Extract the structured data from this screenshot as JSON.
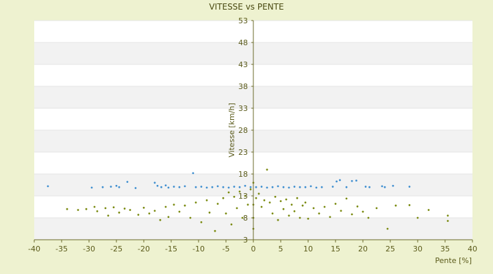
{
  "chart_data": {
    "type": "scatter",
    "title": "VITESSE vs PENTE",
    "xlabel": "Pente [%]",
    "ylabel": "Vitesse [km/h]",
    "xlim": [
      -40,
      40
    ],
    "ylim": [
      3,
      53
    ],
    "x_ticks": [
      -40,
      -35,
      -30,
      -25,
      -20,
      -15,
      -10,
      -5,
      0,
      5,
      10,
      15,
      20,
      25,
      30,
      35,
      40
    ],
    "y_ticks": [
      3,
      8,
      13,
      18,
      23,
      28,
      33,
      38,
      43,
      48,
      53
    ],
    "grid": "horizontal alternating bands",
    "legend": "none",
    "series": [
      {
        "color": "#3f8fd0",
        "marker": "circle",
        "approx_cluster": "≈ 15 km/h across slopes -38 to 30 %",
        "points": [
          [
            -37.5,
            15.2
          ],
          [
            -29.5,
            14.9
          ],
          [
            -27.5,
            15.0
          ],
          [
            -26.0,
            15.1
          ],
          [
            -25.0,
            15.3
          ],
          [
            -24.5,
            15.0
          ],
          [
            -23.0,
            16.2
          ],
          [
            -21.5,
            14.8
          ],
          [
            -18.0,
            16.0
          ],
          [
            -17.5,
            15.3
          ],
          [
            -16.8,
            15.0
          ],
          [
            -16.0,
            15.4
          ],
          [
            -15.5,
            14.9
          ],
          [
            -14.5,
            15.1
          ],
          [
            -13.5,
            15.0
          ],
          [
            -12.5,
            15.2
          ],
          [
            -11.0,
            18.2
          ],
          [
            -10.5,
            15.0
          ],
          [
            -9.5,
            15.1
          ],
          [
            -8.5,
            14.9
          ],
          [
            -7.5,
            15.0
          ],
          [
            -6.5,
            15.2
          ],
          [
            -5.5,
            15.0
          ],
          [
            -4.5,
            14.9
          ],
          [
            -3.5,
            15.1
          ],
          [
            -2.5,
            15.0
          ],
          [
            -1.5,
            15.3
          ],
          [
            -0.5,
            15.0
          ],
          [
            0.5,
            15.0
          ],
          [
            1.5,
            15.1
          ],
          [
            2.5,
            14.9
          ],
          [
            3.5,
            15.0
          ],
          [
            4.5,
            15.2
          ],
          [
            5.5,
            15.0
          ],
          [
            6.5,
            14.9
          ],
          [
            7.5,
            15.1
          ],
          [
            8.5,
            15.0
          ],
          [
            9.5,
            15.0
          ],
          [
            10.5,
            15.2
          ],
          [
            11.5,
            14.9
          ],
          [
            12.5,
            15.0
          ],
          [
            14.5,
            15.1
          ],
          [
            15.2,
            16.3
          ],
          [
            15.8,
            16.6
          ],
          [
            17.0,
            15.0
          ],
          [
            18.0,
            16.4
          ],
          [
            18.8,
            16.5
          ],
          [
            20.5,
            15.1
          ],
          [
            21.2,
            15.0
          ],
          [
            23.5,
            15.2
          ],
          [
            24.0,
            15.0
          ],
          [
            25.5,
            15.3
          ],
          [
            28.5,
            15.1
          ]
        ]
      },
      {
        "color": "#7a8a10",
        "marker": "circle",
        "approx_cluster": "≈ 6–15 km/h, densest near 0 %",
        "points": [
          [
            -34.0,
            10.0
          ],
          [
            -32.0,
            9.8
          ],
          [
            -30.5,
            10.0
          ],
          [
            -29.0,
            10.5
          ],
          [
            -28.5,
            9.5
          ],
          [
            -27.0,
            10.2
          ],
          [
            -26.5,
            8.5
          ],
          [
            -25.5,
            10.4
          ],
          [
            -24.5,
            9.2
          ],
          [
            -23.5,
            10.1
          ],
          [
            -22.5,
            9.8
          ],
          [
            -21.0,
            8.7
          ],
          [
            -20.0,
            10.3
          ],
          [
            -19.0,
            9.0
          ],
          [
            -18.0,
            9.6
          ],
          [
            -17.0,
            7.5
          ],
          [
            -16.0,
            10.5
          ],
          [
            -15.5,
            8.2
          ],
          [
            -14.5,
            11.0
          ],
          [
            -13.5,
            9.4
          ],
          [
            -12.5,
            10.8
          ],
          [
            -11.5,
            8.0
          ],
          [
            -10.5,
            11.5
          ],
          [
            -9.5,
            7.0
          ],
          [
            -8.5,
            12.0
          ],
          [
            -8.0,
            9.2
          ],
          [
            -7.0,
            5.0
          ],
          [
            -6.5,
            11.2
          ],
          [
            -5.5,
            12.5
          ],
          [
            -5.0,
            9.0
          ],
          [
            -4.5,
            13.8
          ],
          [
            -4.0,
            6.5
          ],
          [
            -3.5,
            12.8
          ],
          [
            -3.0,
            10.2
          ],
          [
            -2.5,
            14.0
          ],
          [
            -2.0,
            8.0
          ],
          [
            -1.5,
            13.0
          ],
          [
            -1.0,
            11.0
          ],
          [
            -0.5,
            14.5
          ],
          [
            0.0,
            16.0
          ],
          [
            0.0,
            5.5
          ],
          [
            0.0,
            8.0
          ],
          [
            0.0,
            11.0
          ],
          [
            0.5,
            12.5
          ],
          [
            1.0,
            13.5
          ],
          [
            1.5,
            10.5
          ],
          [
            2.0,
            12.0
          ],
          [
            2.5,
            19.0
          ],
          [
            3.0,
            11.5
          ],
          [
            3.5,
            9.0
          ],
          [
            4.0,
            12.8
          ],
          [
            4.5,
            7.5
          ],
          [
            5.0,
            11.8
          ],
          [
            5.5,
            10.0
          ],
          [
            6.0,
            12.2
          ],
          [
            6.5,
            8.5
          ],
          [
            7.0,
            11.0
          ],
          [
            7.5,
            9.5
          ],
          [
            8.0,
            12.5
          ],
          [
            8.5,
            8.0
          ],
          [
            9.0,
            10.8
          ],
          [
            9.5,
            11.5
          ],
          [
            10.0,
            7.8
          ],
          [
            11.0,
            10.2
          ],
          [
            12.0,
            9.0
          ],
          [
            13.0,
            10.5
          ],
          [
            14.0,
            8.2
          ],
          [
            15.0,
            11.2
          ],
          [
            16.0,
            9.6
          ],
          [
            17.0,
            12.4
          ],
          [
            18.0,
            8.8
          ],
          [
            19.0,
            10.6
          ],
          [
            20.0,
            9.4
          ],
          [
            21.0,
            8.0
          ],
          [
            22.5,
            10.2
          ],
          [
            24.5,
            5.5
          ],
          [
            26.0,
            10.8
          ],
          [
            28.5,
            10.9
          ],
          [
            30.0,
            8.0
          ],
          [
            32.0,
            9.8
          ],
          [
            35.5,
            8.5
          ],
          [
            35.5,
            7.3
          ]
        ]
      }
    ]
  }
}
